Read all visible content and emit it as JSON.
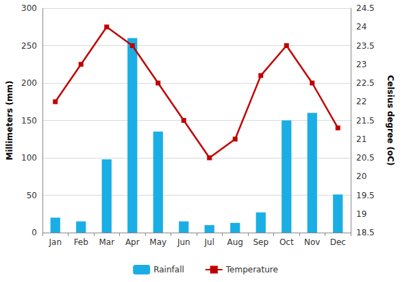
{
  "chart_data": {
    "type": "bar",
    "categories": [
      "Jan",
      "Feb",
      "Mar",
      "Apr",
      "May",
      "Jun",
      "Jul",
      "Aug",
      "Sep",
      "Oct",
      "Nov",
      "Dec"
    ],
    "series": [
      {
        "name": "Rainfall",
        "type": "bar",
        "color": "#1aaee5",
        "values": [
          20,
          15,
          98,
          260,
          135,
          15,
          10,
          13,
          27,
          150,
          160,
          51
        ]
      },
      {
        "name": "Temperature",
        "type": "line",
        "color": "#c00000",
        "marker": "square",
        "axis": "y2",
        "values": [
          22,
          23,
          24,
          23.5,
          22.5,
          21.5,
          20.5,
          21,
          22.7,
          23.5,
          22.5,
          21.3
        ]
      }
    ],
    "ylabel": "Millimeters (mm)",
    "y2label": "Celsius degree (oC)",
    "ylim": [
      0,
      300
    ],
    "yticks": [
      0,
      50,
      100,
      150,
      200,
      250,
      300
    ],
    "y2lim": [
      18.5,
      24.5
    ],
    "y2ticks": [
      18.5,
      19,
      19.5,
      20,
      20.5,
      21,
      21.5,
      22,
      22.5,
      23,
      23.5,
      24,
      24.5
    ],
    "grid": true,
    "legend": "bottom"
  }
}
